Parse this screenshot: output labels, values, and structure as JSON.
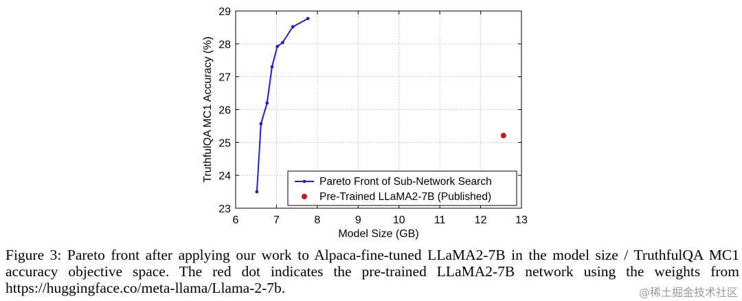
{
  "chart_data": {
    "type": "line",
    "xlabel": "Model Size (GB)",
    "ylabel": "TruthfulQA MC1 Accuracy (%)",
    "xlim": [
      6,
      13
    ],
    "ylim": [
      23,
      29
    ],
    "xticks": [
      "6",
      "7",
      "8",
      "9",
      "10",
      "11",
      "12",
      "13"
    ],
    "yticks": [
      "23",
      "24",
      "25",
      "26",
      "27",
      "28",
      "29"
    ],
    "grid": true,
    "legend_position": "bottom-right",
    "series": [
      {
        "name": "Pareto Front of Sub-Network Search",
        "style": "line-with-markers",
        "color": "#1c1cdc",
        "points": [
          {
            "x": 6.52,
            "y": 23.5
          },
          {
            "x": 6.62,
            "y": 25.57
          },
          {
            "x": 6.77,
            "y": 26.2
          },
          {
            "x": 6.89,
            "y": 27.3
          },
          {
            "x": 7.02,
            "y": 27.92
          },
          {
            "x": 7.15,
            "y": 28.04
          },
          {
            "x": 7.4,
            "y": 28.52
          },
          {
            "x": 7.77,
            "y": 28.77
          }
        ]
      },
      {
        "name": "Pre-Trained LLaMA2-7B (Published)",
        "style": "marker",
        "color": "#c81414",
        "points": [
          {
            "x": 12.56,
            "y": 25.21
          }
        ]
      }
    ]
  },
  "caption": {
    "text": "Figure 3: Pareto front after applying our work to Alpaca-fine-tuned LLaMA2-7B in the model size / TruthfulQA MC1 accuracy objective space. The red dot indicates the pre-trained LLaMA2-7B network using the weights from https://huggingface.co/meta-llama/Llama-2-7b."
  },
  "watermark": {
    "text": "@稀土掘金技术社区"
  }
}
